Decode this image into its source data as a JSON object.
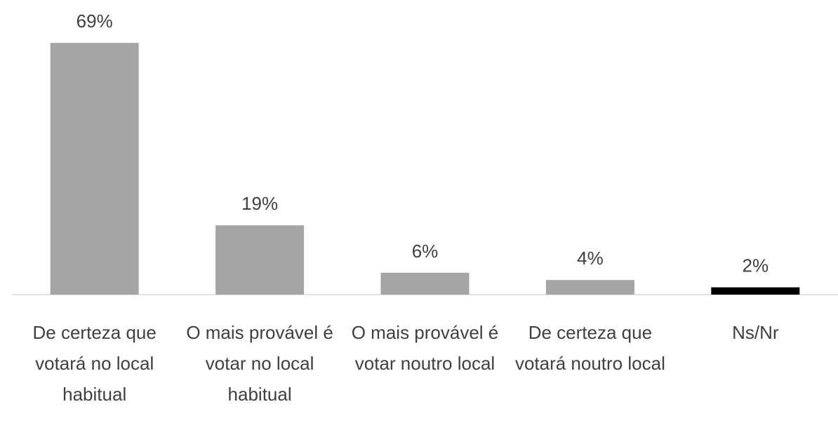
{
  "chart_data": {
    "type": "bar",
    "categories": [
      "De certeza que votará no local habitual",
      "O mais provável é votar no local habitual",
      "O mais provável é votar noutro local",
      "De certeza que votará noutro local",
      "Ns/Nr"
    ],
    "values": [
      69,
      19,
      6,
      4,
      2
    ],
    "value_labels": [
      "69%",
      "19%",
      "6%",
      "4%",
      "2%"
    ],
    "colors": [
      "#a5a5a5",
      "#a5a5a5",
      "#a5a5a5",
      "#a5a5a5",
      "#000000"
    ]
  }
}
